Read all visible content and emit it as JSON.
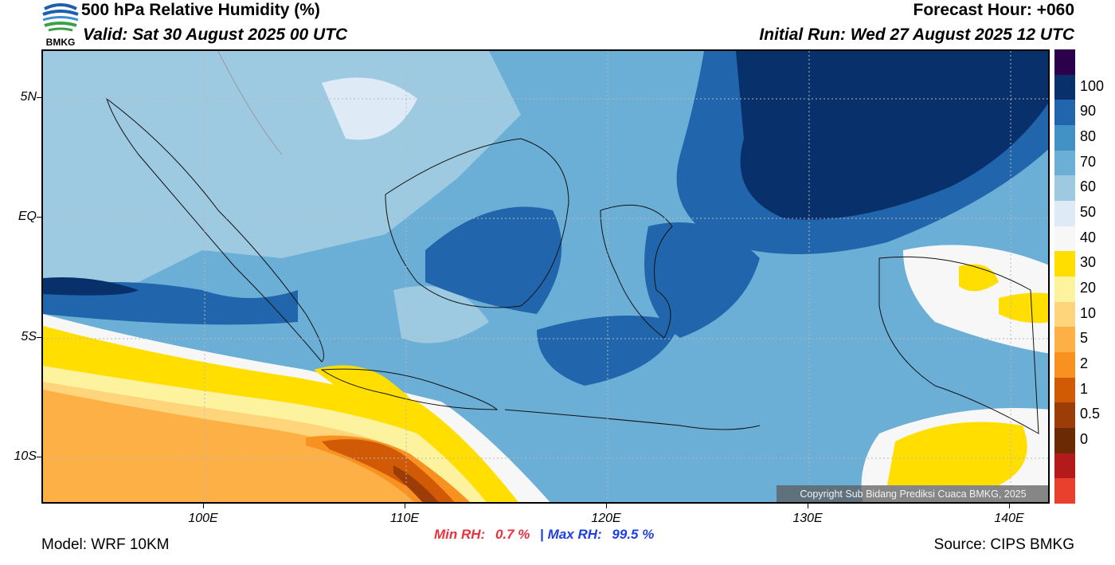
{
  "header": {
    "title": "500 hPa Relative Humidity (%)",
    "valid": "Valid: Sat 30 August 2025 00 UTC",
    "forecast_hour": "Forecast Hour: +060",
    "initial_run": "Initial Run: Wed 27 August 2025 12 UTC",
    "logo_text": "BMKG"
  },
  "map": {
    "lat_labels": [
      "5N",
      "EQ",
      "5S",
      "10S"
    ],
    "lon_labels": [
      "100E",
      "110E",
      "120E",
      "130E",
      "140E"
    ],
    "copyright": "Copyright Sub Bidang Prediksi Cuaca BMKG, 2025"
  },
  "colorbar": {
    "labels": [
      "100",
      "90",
      "80",
      "70",
      "60",
      "50",
      "40",
      "30",
      "20",
      "10",
      "5",
      "2",
      "1",
      "0.5",
      "0"
    ],
    "colors": [
      "#2d004b",
      "#08306b",
      "#2166ac",
      "#4292c6",
      "#6baed6",
      "#9ecae1",
      "#deebf7",
      "#f7f7f7",
      "#ffde00",
      "#fdf29e",
      "#fed57b",
      "#fdb045",
      "#f8911f",
      "#d15a07",
      "#9c3c06",
      "#6b2a04",
      "#b41a1a",
      "#e8402c"
    ]
  },
  "stats": {
    "min_label": "Min RH:",
    "min_value": "0.7 %",
    "separator": "|",
    "max_label": "Max RH:",
    "max_value": "99.5 %"
  },
  "footer": {
    "model": "Model: WRF 10KM",
    "source": "Source: CIPS BMKG"
  }
}
